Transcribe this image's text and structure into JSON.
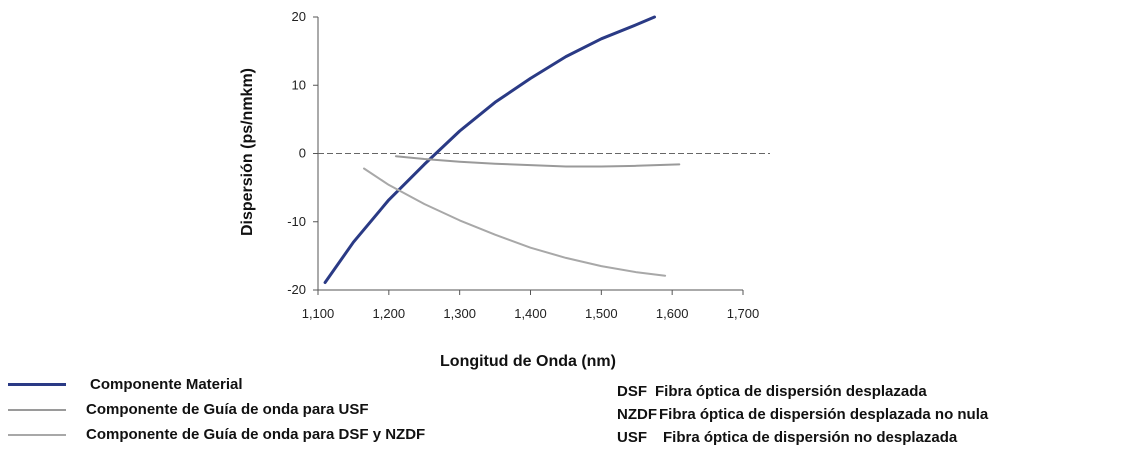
{
  "chart_data": {
    "type": "line",
    "xlabel": "Longitud de Onda (nm)",
    "ylabel": "Dispersión (ps/nmkm)",
    "xlim": [
      1100,
      1700
    ],
    "ylim": [
      -20,
      20
    ],
    "x_ticks": [
      "1,100",
      "1,200",
      "1,300",
      "1,400",
      "1,500",
      "1,600",
      "1,700"
    ],
    "y_ticks": [
      "20",
      "10",
      "0",
      "-10",
      "-20"
    ],
    "zero_line": "dashed",
    "series": [
      {
        "name": "Componente Material",
        "color": "#2a3a85",
        "x": [
          1110,
          1150,
          1200,
          1250,
          1300,
          1350,
          1400,
          1450,
          1500,
          1550,
          1575
        ],
        "y": [
          -18.9,
          -13.0,
          -6.8,
          -1.6,
          3.3,
          7.5,
          11.0,
          14.2,
          16.8,
          18.9,
          20.0
        ]
      },
      {
        "name": "Componente de Guía de onda para USF",
        "color": "#9a9a9a",
        "x": [
          1210,
          1250,
          1300,
          1350,
          1400,
          1450,
          1500,
          1550,
          1610
        ],
        "y": [
          -0.4,
          -0.8,
          -1.2,
          -1.5,
          -1.7,
          -1.9,
          -1.9,
          -1.8,
          -1.6
        ]
      },
      {
        "name": "Componente de Guía de onda para DSF y NZDF",
        "color": "#a8a8a8",
        "x": [
          1165,
          1200,
          1250,
          1300,
          1350,
          1400,
          1450,
          1500,
          1550,
          1590
        ],
        "y": [
          -2.2,
          -4.6,
          -7.4,
          -9.8,
          -11.9,
          -13.8,
          -15.3,
          -16.5,
          -17.4,
          -17.9
        ]
      }
    ]
  },
  "abbreviations": [
    {
      "code": "DSF",
      "text": "Fibra óptica de dispersión desplazada"
    },
    {
      "code": "NZDF",
      "text": "Fibra óptica de dispersión desplazada no nula"
    },
    {
      "code": "USF",
      "text": "Fibra óptica de dispersión no desplazada"
    }
  ]
}
